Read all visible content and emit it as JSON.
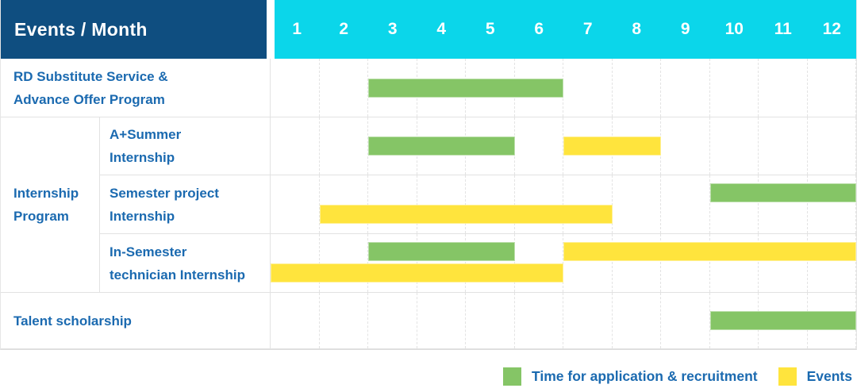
{
  "header": {
    "label": "Events / Month",
    "months": [
      "1",
      "2",
      "3",
      "4",
      "5",
      "6",
      "7",
      "8",
      "9",
      "10",
      "11",
      "12"
    ]
  },
  "group_label": "Internship Program",
  "rows": [
    {
      "label": "RD Substitute Service &\nAdvance Offer Program",
      "bars": [
        {
          "type": "application",
          "start": 3,
          "end": 6,
          "lane": "center"
        }
      ]
    },
    {
      "label": "A+Summer\nInternship",
      "bars": [
        {
          "type": "application",
          "start": 3,
          "end": 5,
          "lane": "center"
        },
        {
          "type": "event",
          "start": 7,
          "end": 8,
          "lane": "center"
        }
      ]
    },
    {
      "label": "Semester project\nInternship",
      "bars": [
        {
          "type": "application",
          "start": 10,
          "end": 12,
          "lane": "upper"
        },
        {
          "type": "event",
          "start": 2,
          "end": 7,
          "lane": "lower"
        }
      ]
    },
    {
      "label": "In-Semester\ntechnician Internship",
      "bars": [
        {
          "type": "application",
          "start": 3,
          "end": 5,
          "lane": "upper"
        },
        {
          "type": "event",
          "start": 7,
          "end": 12,
          "lane": "upper"
        },
        {
          "type": "event",
          "start": 1,
          "end": 6,
          "lane": "lower"
        }
      ]
    },
    {
      "label": "Talent scholarship",
      "bars": [
        {
          "type": "application",
          "start": 10,
          "end": 12,
          "lane": "center"
        }
      ]
    }
  ],
  "colors": {
    "application": "#85c566",
    "event": "#ffe43d",
    "header_bg": "#0f4e80",
    "months_bg": "#0bd6ea",
    "label_text": "#1b6ab0"
  },
  "legend": {
    "items": [
      {
        "type": "application",
        "label": "Time for application & recruitment"
      },
      {
        "type": "event",
        "label": "Events"
      }
    ]
  },
  "chart_data": {
    "type": "bar",
    "subtype": "gantt",
    "title": "Events / Month",
    "x_categories": [
      1,
      2,
      3,
      4,
      5,
      6,
      7,
      8,
      9,
      10,
      11,
      12
    ],
    "legend": [
      "Time for application & recruitment",
      "Events"
    ],
    "legend_position": "bottom-right",
    "rows": [
      {
        "label": "RD Substitute Service & Advance Offer Program",
        "group": null,
        "bars": [
          {
            "series": "Time for application & recruitment",
            "start_month": 3,
            "end_month": 6
          }
        ]
      },
      {
        "label": "A+Summer Internship",
        "group": "Internship Program",
        "bars": [
          {
            "series": "Time for application & recruitment",
            "start_month": 3,
            "end_month": 5
          },
          {
            "series": "Events",
            "start_month": 7,
            "end_month": 8
          }
        ]
      },
      {
        "label": "Semester project Internship",
        "group": "Internship Program",
        "bars": [
          {
            "series": "Time for application & recruitment",
            "start_month": 10,
            "end_month": 12
          },
          {
            "series": "Events",
            "start_month": 2,
            "end_month": 7
          }
        ]
      },
      {
        "label": "In-Semester technician Internship",
        "group": "Internship Program",
        "bars": [
          {
            "series": "Time for application & recruitment",
            "start_month": 3,
            "end_month": 5
          },
          {
            "series": "Events",
            "start_month": 7,
            "end_month": 12
          },
          {
            "series": "Events",
            "start_month": 1,
            "end_month": 6
          }
        ]
      },
      {
        "label": "Talent scholarship",
        "group": null,
        "bars": [
          {
            "series": "Time for application & recruitment",
            "start_month": 10,
            "end_month": 12
          }
        ]
      }
    ]
  }
}
